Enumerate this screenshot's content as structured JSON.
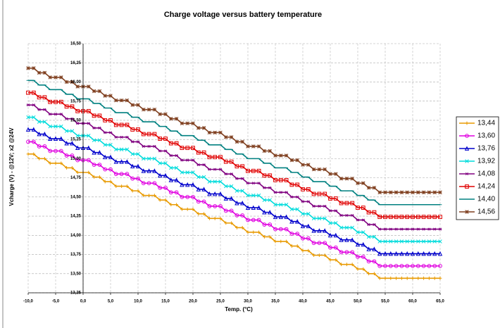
{
  "chart_data": {
    "type": "line",
    "title": "Charge voltage versus battery temperature",
    "x_label": "Temp. (°C)",
    "y_label": "Vcharge (V) - @12V; x2 @24V",
    "x": [
      -10,
      -9,
      -8,
      -7,
      -6,
      -5,
      -4,
      -3,
      -2,
      -1,
      0,
      1,
      2,
      3,
      4,
      5,
      6,
      7,
      8,
      9,
      10,
      11,
      12,
      13,
      14,
      15,
      16,
      17,
      18,
      19,
      20,
      21,
      22,
      23,
      24,
      25,
      26,
      27,
      28,
      29,
      30,
      31,
      32,
      33,
      34,
      35,
      36,
      37,
      38,
      39,
      40,
      41,
      42,
      43,
      44,
      45,
      46,
      47,
      48,
      49,
      50,
      51,
      52,
      53,
      54,
      55,
      56,
      57,
      58,
      59,
      60,
      61,
      62,
      63,
      64,
      65
    ],
    "series": [
      {
        "name": "13,44",
        "color": "#e89a00",
        "marker": "plus",
        "values": [
          15.06,
          15.06,
          15.0,
          15.0,
          14.94,
          14.94,
          14.94,
          14.88,
          14.88,
          14.82,
          14.82,
          14.82,
          14.76,
          14.76,
          14.7,
          14.7,
          14.64,
          14.64,
          14.64,
          14.58,
          14.58,
          14.52,
          14.52,
          14.52,
          14.46,
          14.46,
          14.4,
          14.4,
          14.34,
          14.34,
          14.34,
          14.28,
          14.28,
          14.22,
          14.22,
          14.22,
          14.16,
          14.16,
          14.1,
          14.1,
          14.04,
          14.04,
          14.04,
          13.98,
          13.98,
          13.92,
          13.92,
          13.92,
          13.86,
          13.86,
          13.8,
          13.8,
          13.74,
          13.74,
          13.74,
          13.68,
          13.68,
          13.62,
          13.62,
          13.62,
          13.56,
          13.56,
          13.5,
          13.5,
          13.44,
          13.44,
          13.44,
          13.44,
          13.44,
          13.44,
          13.44,
          13.44,
          13.44,
          13.44,
          13.44,
          13.44
        ]
      },
      {
        "name": "13,60",
        "color": "#e000e0",
        "marker": "circle",
        "values": [
          15.22,
          15.22,
          15.16,
          15.16,
          15.1,
          15.1,
          15.1,
          15.04,
          15.04,
          14.98,
          14.98,
          14.98,
          14.92,
          14.92,
          14.86,
          14.86,
          14.8,
          14.8,
          14.8,
          14.74,
          14.74,
          14.68,
          14.68,
          14.68,
          14.62,
          14.62,
          14.56,
          14.56,
          14.5,
          14.5,
          14.5,
          14.44,
          14.44,
          14.38,
          14.38,
          14.38,
          14.32,
          14.32,
          14.26,
          14.26,
          14.2,
          14.2,
          14.2,
          14.14,
          14.14,
          14.08,
          14.08,
          14.08,
          14.02,
          14.02,
          13.96,
          13.96,
          13.9,
          13.9,
          13.9,
          13.84,
          13.84,
          13.78,
          13.78,
          13.78,
          13.72,
          13.72,
          13.66,
          13.66,
          13.6,
          13.6,
          13.6,
          13.6,
          13.6,
          13.6,
          13.6,
          13.6,
          13.6,
          13.6,
          13.6,
          13.6
        ]
      },
      {
        "name": "13,76",
        "color": "#0000cc",
        "marker": "triangle",
        "values": [
          15.38,
          15.38,
          15.32,
          15.32,
          15.26,
          15.26,
          15.26,
          15.2,
          15.2,
          15.14,
          15.14,
          15.14,
          15.08,
          15.08,
          15.02,
          15.02,
          14.96,
          14.96,
          14.96,
          14.9,
          14.9,
          14.84,
          14.84,
          14.84,
          14.78,
          14.78,
          14.72,
          14.72,
          14.66,
          14.66,
          14.66,
          14.6,
          14.6,
          14.54,
          14.54,
          14.54,
          14.48,
          14.48,
          14.42,
          14.42,
          14.36,
          14.36,
          14.36,
          14.3,
          14.3,
          14.24,
          14.24,
          14.24,
          14.18,
          14.18,
          14.12,
          14.12,
          14.06,
          14.06,
          14.06,
          14.0,
          14.0,
          13.94,
          13.94,
          13.94,
          13.88,
          13.88,
          13.82,
          13.82,
          13.76,
          13.76,
          13.76,
          13.76,
          13.76,
          13.76,
          13.76,
          13.76,
          13.76,
          13.76,
          13.76,
          13.76
        ]
      },
      {
        "name": "13,92",
        "color": "#00dcdc",
        "marker": "x",
        "values": [
          15.54,
          15.54,
          15.48,
          15.48,
          15.42,
          15.42,
          15.42,
          15.36,
          15.36,
          15.3,
          15.3,
          15.3,
          15.24,
          15.24,
          15.18,
          15.18,
          15.12,
          15.12,
          15.12,
          15.06,
          15.06,
          15.0,
          15.0,
          15.0,
          14.94,
          14.94,
          14.88,
          14.88,
          14.82,
          14.82,
          14.82,
          14.76,
          14.76,
          14.7,
          14.7,
          14.7,
          14.64,
          14.64,
          14.58,
          14.58,
          14.52,
          14.52,
          14.52,
          14.46,
          14.46,
          14.4,
          14.4,
          14.4,
          14.34,
          14.34,
          14.28,
          14.28,
          14.22,
          14.22,
          14.22,
          14.16,
          14.16,
          14.1,
          14.1,
          14.1,
          14.04,
          14.04,
          13.98,
          13.98,
          13.92,
          13.92,
          13.92,
          13.92,
          13.92,
          13.92,
          13.92,
          13.92,
          13.92,
          13.92,
          13.92,
          13.92
        ]
      },
      {
        "name": "14,08",
        "color": "#800080",
        "marker": "star",
        "values": [
          15.7,
          15.7,
          15.64,
          15.64,
          15.58,
          15.58,
          15.58,
          15.52,
          15.52,
          15.46,
          15.46,
          15.46,
          15.4,
          15.4,
          15.34,
          15.34,
          15.28,
          15.28,
          15.28,
          15.22,
          15.22,
          15.16,
          15.16,
          15.16,
          15.1,
          15.1,
          15.04,
          15.04,
          14.98,
          14.98,
          14.98,
          14.92,
          14.92,
          14.86,
          14.86,
          14.86,
          14.8,
          14.8,
          14.74,
          14.74,
          14.68,
          14.68,
          14.68,
          14.62,
          14.62,
          14.56,
          14.56,
          14.56,
          14.5,
          14.5,
          14.44,
          14.44,
          14.38,
          14.38,
          14.38,
          14.32,
          14.32,
          14.26,
          14.26,
          14.26,
          14.2,
          14.2,
          14.14,
          14.14,
          14.08,
          14.08,
          14.08,
          14.08,
          14.08,
          14.08,
          14.08,
          14.08,
          14.08,
          14.08,
          14.08,
          14.08
        ]
      },
      {
        "name": "14,24",
        "color": "#e00000",
        "marker": "square",
        "values": [
          15.86,
          15.86,
          15.8,
          15.8,
          15.74,
          15.74,
          15.74,
          15.68,
          15.68,
          15.62,
          15.62,
          15.62,
          15.56,
          15.56,
          15.5,
          15.5,
          15.44,
          15.44,
          15.44,
          15.38,
          15.38,
          15.32,
          15.32,
          15.32,
          15.26,
          15.26,
          15.2,
          15.2,
          15.14,
          15.14,
          15.14,
          15.08,
          15.08,
          15.02,
          15.02,
          15.02,
          14.96,
          14.96,
          14.9,
          14.9,
          14.84,
          14.84,
          14.84,
          14.78,
          14.78,
          14.72,
          14.72,
          14.72,
          14.66,
          14.66,
          14.6,
          14.6,
          14.54,
          14.54,
          14.54,
          14.48,
          14.48,
          14.42,
          14.42,
          14.42,
          14.36,
          14.36,
          14.3,
          14.3,
          14.24,
          14.24,
          14.24,
          14.24,
          14.24,
          14.24,
          14.24,
          14.24,
          14.24,
          14.24,
          14.24,
          14.24
        ]
      },
      {
        "name": "14,40",
        "color": "#008080",
        "marker": "dash",
        "values": [
          16.02,
          16.02,
          15.96,
          15.96,
          15.9,
          15.9,
          15.9,
          15.84,
          15.84,
          15.78,
          15.78,
          15.78,
          15.72,
          15.72,
          15.66,
          15.66,
          15.6,
          15.6,
          15.6,
          15.54,
          15.54,
          15.48,
          15.48,
          15.48,
          15.42,
          15.42,
          15.36,
          15.36,
          15.3,
          15.3,
          15.3,
          15.24,
          15.24,
          15.18,
          15.18,
          15.18,
          15.12,
          15.12,
          15.06,
          15.06,
          15.0,
          15.0,
          15.0,
          14.94,
          14.94,
          14.88,
          14.88,
          14.88,
          14.82,
          14.82,
          14.76,
          14.76,
          14.7,
          14.7,
          14.7,
          14.64,
          14.64,
          14.58,
          14.58,
          14.58,
          14.52,
          14.52,
          14.46,
          14.46,
          14.4,
          14.4,
          14.4,
          14.4,
          14.4,
          14.4,
          14.4,
          14.4,
          14.4,
          14.4,
          14.4,
          14.4
        ]
      },
      {
        "name": "14,56",
        "color": "#7f3f1f",
        "marker": "asterisk",
        "values": [
          16.18,
          16.18,
          16.12,
          16.12,
          16.06,
          16.06,
          16.06,
          16.0,
          16.0,
          15.94,
          15.94,
          15.94,
          15.88,
          15.88,
          15.82,
          15.82,
          15.76,
          15.76,
          15.76,
          15.7,
          15.7,
          15.64,
          15.64,
          15.64,
          15.58,
          15.58,
          15.52,
          15.52,
          15.46,
          15.46,
          15.46,
          15.4,
          15.4,
          15.34,
          15.34,
          15.34,
          15.28,
          15.28,
          15.22,
          15.22,
          15.16,
          15.16,
          15.16,
          15.1,
          15.1,
          15.04,
          15.04,
          15.04,
          14.98,
          14.98,
          14.92,
          14.92,
          14.86,
          14.86,
          14.86,
          14.8,
          14.8,
          14.74,
          14.74,
          14.74,
          14.68,
          14.68,
          14.62,
          14.62,
          14.56,
          14.56,
          14.56,
          14.56,
          14.56,
          14.56,
          14.56,
          14.56,
          14.56,
          14.56,
          14.56,
          14.56
        ]
      }
    ],
    "xlim": [
      -10,
      65
    ],
    "xticks": [
      {
        "value": -10,
        "label": "-10,0"
      },
      {
        "value": -5,
        "label": "-5,0"
      },
      {
        "value": 0,
        "label": "0,0"
      },
      {
        "value": 5,
        "label": "5,0"
      },
      {
        "value": 10,
        "label": "10,0"
      },
      {
        "value": 15,
        "label": "15,0"
      },
      {
        "value": 20,
        "label": "20,0"
      },
      {
        "value": 25,
        "label": "25,0"
      },
      {
        "value": 30,
        "label": "30,0"
      },
      {
        "value": 35,
        "label": "35,0"
      },
      {
        "value": 40,
        "label": "40,0"
      },
      {
        "value": 45,
        "label": "45,0"
      },
      {
        "value": 50,
        "label": "50,0"
      },
      {
        "value": 55,
        "label": "55,0"
      },
      {
        "value": 60,
        "label": "60,0"
      },
      {
        "value": 65,
        "label": "65,0"
      }
    ],
    "ylim": [
      13.25,
      16.5
    ],
    "yticks": [
      {
        "value": 13.25,
        "label": "13,25"
      },
      {
        "value": 13.5,
        "label": "13,50"
      },
      {
        "value": 13.75,
        "label": "13,75"
      },
      {
        "value": 14,
        "label": "14,00"
      },
      {
        "value": 14.25,
        "label": "14,25"
      },
      {
        "value": 14.5,
        "label": "14,50"
      },
      {
        "value": 14.75,
        "label": "14,75"
      },
      {
        "value": 15,
        "label": "15,00"
      },
      {
        "value": 15.25,
        "label": "15,25"
      },
      {
        "value": 15.5,
        "label": "15,50"
      },
      {
        "value": 15.75,
        "label": "15,75"
      },
      {
        "value": 16,
        "label": "16,00"
      },
      {
        "value": 16.25,
        "label": "16,25"
      },
      {
        "value": 16.5,
        "label": "16,50"
      }
    ],
    "grid": true,
    "legend": "right"
  }
}
